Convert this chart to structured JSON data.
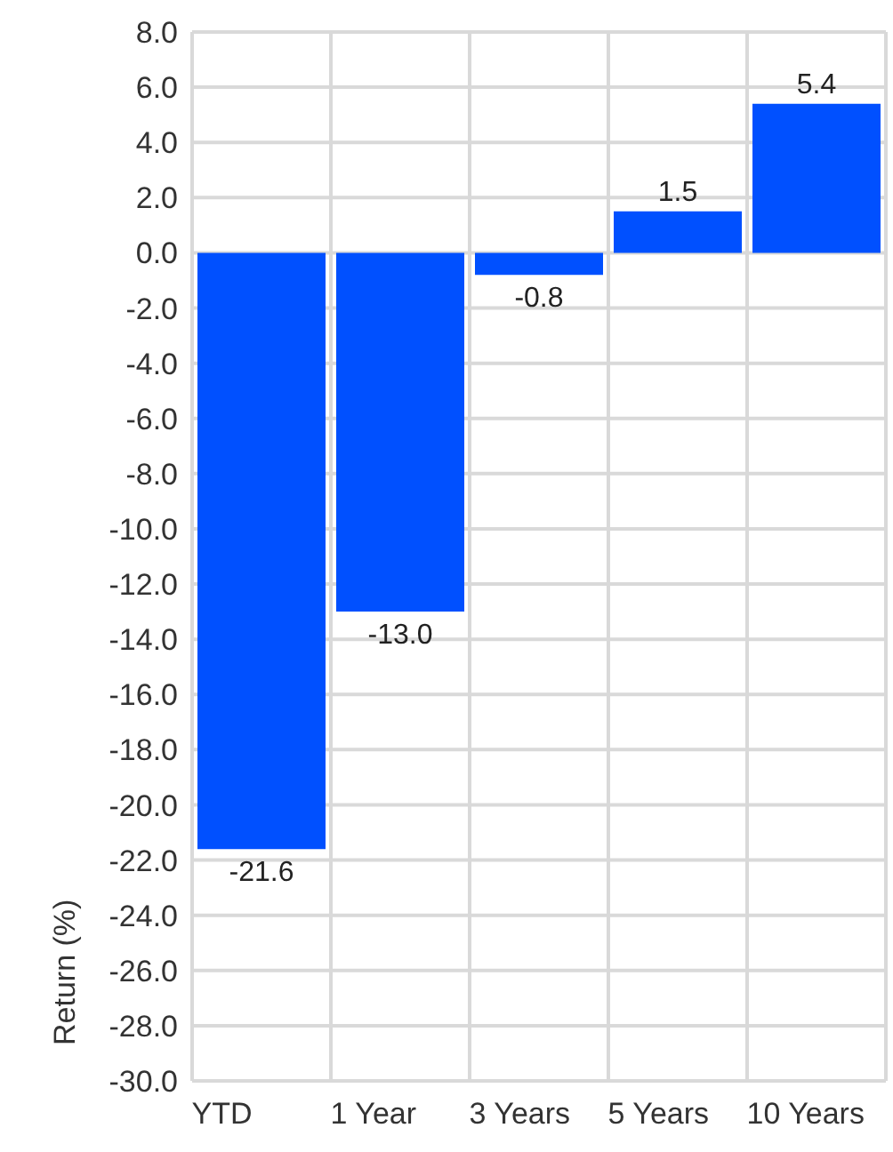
{
  "chart_data": {
    "type": "bar",
    "ylabel": "Return (%)",
    "categories": [
      "YTD",
      "1 Year",
      "3 Years",
      "5 Years",
      "10 Years"
    ],
    "values": [
      -21.6,
      -13.0,
      -0.8,
      1.5,
      5.4
    ],
    "color": "#0050ff",
    "ylim": [
      -30,
      8
    ],
    "yticks": [
      {
        "value": 8,
        "label": "8.0"
      },
      {
        "value": 6,
        "label": "6.0"
      },
      {
        "value": 4,
        "label": "4.0"
      },
      {
        "value": 2,
        "label": "2.0"
      },
      {
        "value": 0,
        "label": "0.0"
      },
      {
        "value": -2,
        "label": "-2.0"
      },
      {
        "value": -4,
        "label": "-4.0"
      },
      {
        "value": -6,
        "label": "-6.0"
      },
      {
        "value": -8,
        "label": "-8.0"
      },
      {
        "value": -10,
        "label": "-10.0"
      },
      {
        "value": -12,
        "label": "-12.0"
      },
      {
        "value": -14,
        "label": "-14.0"
      },
      {
        "value": -16,
        "label": "-16.0"
      },
      {
        "value": -18,
        "label": "-18.0"
      },
      {
        "value": -20,
        "label": "-20.0"
      },
      {
        "value": -22,
        "label": "-22.0"
      },
      {
        "value": -24,
        "label": "-24.0"
      },
      {
        "value": -26,
        "label": "-26.0"
      },
      {
        "value": -28,
        "label": "-28.0"
      },
      {
        "value": -30,
        "label": "-30.0"
      }
    ],
    "value_labels": [
      "-21.6",
      "-13.0",
      "-0.8",
      "1.5",
      "5.4"
    ],
    "grid": true
  }
}
